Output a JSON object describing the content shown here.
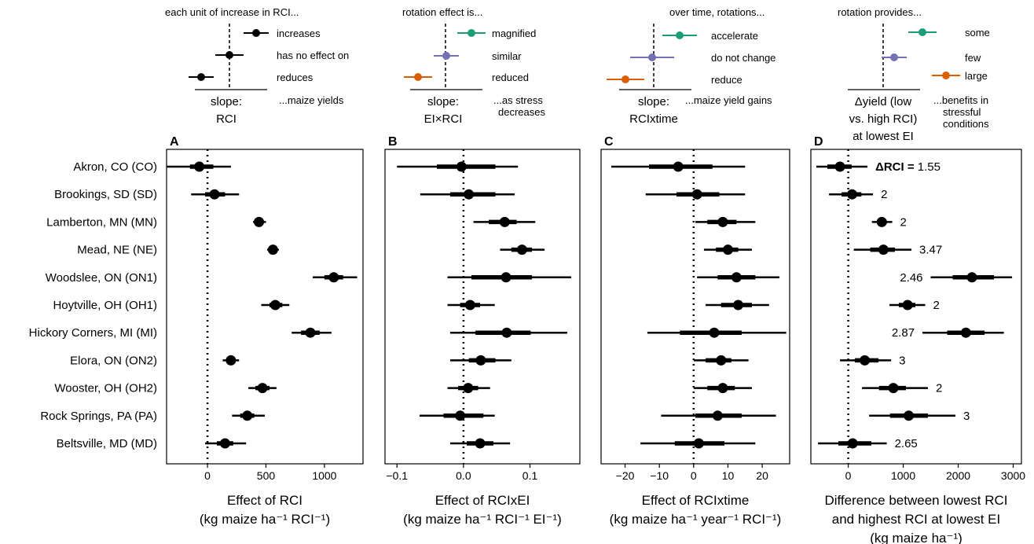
{
  "sites": [
    "Akron, CO (CO)",
    "Brookings, SD (SD)",
    "Lamberton, MN (MN)",
    "Mead, NE (NE)",
    "Woodslee, ON (ON1)",
    "Hoytville, OH (OH1)",
    "Hickory Corners, MI (MI)",
    "Elora, ON (ON2)",
    "Wooster, OH (OH2)",
    "Rock Springs, PA (PA)",
    "Beltsville, MD (MD)"
  ],
  "legends": [
    {
      "header": "each unit of increase in RCI...",
      "footer": "...maize yields",
      "axis_label": [
        "slope:",
        "RCI"
      ],
      "items": [
        {
          "label": "increases",
          "color": "#000000"
        },
        {
          "label": "has no effect on",
          "color": "#000000"
        },
        {
          "label": "reduces",
          "color": "#000000"
        }
      ]
    },
    {
      "header": "rotation effect is...",
      "footer": [
        "...as stress",
        "decreases"
      ],
      "axis_label": [
        "slope:",
        "EI×RCI"
      ],
      "items": [
        {
          "label": "magnified",
          "color": "#1b9e77"
        },
        {
          "label": "similar",
          "color": "#7570b3"
        },
        {
          "label": "reduced",
          "color": "#d95f02"
        }
      ]
    },
    {
      "header": "over time, rotations...",
      "footer": "...maize yield gains",
      "axis_label": [
        "slope:",
        "RCIxtime"
      ],
      "items": [
        {
          "label": "accelerate",
          "color": "#1b9e77"
        },
        {
          "label": "do not change",
          "color": "#7570b3"
        },
        {
          "label": "reduce",
          "color": "#d95f02"
        }
      ]
    },
    {
      "header": "rotation provides...",
      "footer": [
        "...benefits in",
        "stressful",
        "conditions"
      ],
      "axis_label": [
        "Δyield (low",
        "vs. high RCI)",
        "at lowest EI"
      ],
      "items": [
        {
          "label": "some",
          "color": "#1b9e77"
        },
        {
          "label": "few",
          "color": "#7570b3"
        },
        {
          "label": "large",
          "color": "#d95f02"
        }
      ]
    }
  ],
  "chart_data": [
    {
      "type": "forest",
      "panel_label": "A",
      "xlabel": [
        "Effect of RCI",
        "(kg maize ha⁻¹ RCI⁻¹)"
      ],
      "xlim": [
        -350,
        1330
      ],
      "xticks": [
        0,
        500,
        1000
      ],
      "xtick_labels": [
        "0",
        "500",
        "1000"
      ],
      "reference_line": 0,
      "points": [
        {
          "site": "CO",
          "estimate": -70,
          "inner": [
            -150,
            50
          ],
          "outer": [
            -350,
            200
          ]
        },
        {
          "site": "SD",
          "estimate": 60,
          "inner": [
            -20,
            150
          ],
          "outer": [
            -140,
            270
          ]
        },
        {
          "site": "MN",
          "estimate": 440,
          "inner": [
            410,
            470
          ],
          "outer": [
            390,
            500
          ]
        },
        {
          "site": "NE",
          "estimate": 560,
          "inner": [
            530,
            590
          ],
          "outer": [
            510,
            610
          ]
        },
        {
          "site": "ON1",
          "estimate": 1080,
          "inner": [
            1000,
            1160
          ],
          "outer": [
            900,
            1280
          ]
        },
        {
          "site": "OH1",
          "estimate": 580,
          "inner": [
            530,
            640
          ],
          "outer": [
            460,
            700
          ]
        },
        {
          "site": "MI",
          "estimate": 880,
          "inner": [
            800,
            960
          ],
          "outer": [
            720,
            1060
          ]
        },
        {
          "site": "ON2",
          "estimate": 200,
          "inner": [
            160,
            240
          ],
          "outer": [
            130,
            270
          ]
        },
        {
          "site": "OH2",
          "estimate": 470,
          "inner": [
            410,
            530
          ],
          "outer": [
            350,
            590
          ]
        },
        {
          "site": "PA",
          "estimate": 340,
          "inner": [
            280,
            400
          ],
          "outer": [
            210,
            490
          ]
        },
        {
          "site": "MD",
          "estimate": 150,
          "inner": [
            80,
            220
          ],
          "outer": [
            -20,
            330
          ]
        }
      ]
    },
    {
      "type": "forest",
      "panel_label": "B",
      "xlabel": [
        "Effect of RCIxEI",
        "(kg maize ha⁻¹ RCI⁻¹ EI⁻¹)"
      ],
      "xlim": [
        -0.118,
        0.175
      ],
      "xticks": [
        -0.1,
        0.0,
        0.1
      ],
      "xtick_labels": [
        "−0.1",
        "0.0",
        "0.1"
      ],
      "reference_line": 0,
      "points": [
        {
          "site": "CO",
          "estimate": -0.003,
          "inner": [
            -0.04,
            0.048
          ],
          "outer": [
            -0.1,
            0.082
          ]
        },
        {
          "site": "SD",
          "estimate": 0.008,
          "inner": [
            -0.02,
            0.048
          ],
          "outer": [
            -0.065,
            0.077
          ]
        },
        {
          "site": "MN",
          "estimate": 0.062,
          "inner": [
            0.038,
            0.08
          ],
          "outer": [
            0.015,
            0.108
          ]
        },
        {
          "site": "NE",
          "estimate": 0.088,
          "inner": [
            0.072,
            0.103
          ],
          "outer": [
            0.055,
            0.122
          ]
        },
        {
          "site": "ON1",
          "estimate": 0.064,
          "inner": [
            0.012,
            0.103
          ],
          "outer": [
            -0.024,
            0.162
          ]
        },
        {
          "site": "OH1",
          "estimate": 0.01,
          "inner": [
            -0.005,
            0.025
          ],
          "outer": [
            -0.024,
            0.047
          ]
        },
        {
          "site": "MI",
          "estimate": 0.065,
          "inner": [
            0.018,
            0.101
          ],
          "outer": [
            -0.02,
            0.156
          ]
        },
        {
          "site": "ON2",
          "estimate": 0.026,
          "inner": [
            0.008,
            0.048
          ],
          "outer": [
            -0.02,
            0.072
          ]
        },
        {
          "site": "OH2",
          "estimate": 0.007,
          "inner": [
            -0.008,
            0.022
          ],
          "outer": [
            -0.024,
            0.04
          ]
        },
        {
          "site": "PA",
          "estimate": -0.005,
          "inner": [
            -0.03,
            0.03
          ],
          "outer": [
            -0.066,
            0.047
          ]
        },
        {
          "site": "MD",
          "estimate": 0.025,
          "inner": [
            0.005,
            0.045
          ],
          "outer": [
            -0.02,
            0.07
          ]
        }
      ]
    },
    {
      "type": "forest",
      "panel_label": "C",
      "xlabel": [
        "Effect of RCIxtime",
        "(kg maize ha⁻¹ year⁻¹ RCI⁻¹)"
      ],
      "xlim": [
        -27,
        28
      ],
      "xticks": [
        -20,
        -10,
        0,
        10,
        20
      ],
      "xtick_labels": [
        "−20",
        "−10",
        "0",
        "10",
        "20"
      ],
      "reference_line": 0,
      "points": [
        {
          "site": "CO",
          "estimate": -4.5,
          "inner": [
            -13,
            5.5
          ],
          "outer": [
            -24,
            15
          ]
        },
        {
          "site": "SD",
          "estimate": 1,
          "inner": [
            -5,
            7.5
          ],
          "outer": [
            -14,
            15
          ]
        },
        {
          "site": "MN",
          "estimate": 8.5,
          "inner": [
            4,
            12.5
          ],
          "outer": [
            0.5,
            18
          ]
        },
        {
          "site": "NE",
          "estimate": 10,
          "inner": [
            6.5,
            13
          ],
          "outer": [
            3,
            17
          ]
        },
        {
          "site": "ON1",
          "estimate": 12.5,
          "inner": [
            7,
            18
          ],
          "outer": [
            1,
            25
          ]
        },
        {
          "site": "OH1",
          "estimate": 13,
          "inner": [
            8,
            17
          ],
          "outer": [
            3.5,
            22
          ]
        },
        {
          "site": "MI",
          "estimate": 6,
          "inner": [
            -4,
            14
          ],
          "outer": [
            -13.5,
            27
          ]
        },
        {
          "site": "ON2",
          "estimate": 8,
          "inner": [
            3.5,
            11
          ],
          "outer": [
            0,
            16
          ]
        },
        {
          "site": "OH2",
          "estimate": 8.5,
          "inner": [
            4,
            12
          ],
          "outer": [
            0,
            17
          ]
        },
        {
          "site": "PA",
          "estimate": 7,
          "inner": [
            0.5,
            14
          ],
          "outer": [
            -9.5,
            24
          ]
        },
        {
          "site": "MD",
          "estimate": 1.5,
          "inner": [
            -5.5,
            9
          ],
          "outer": [
            -15.5,
            18
          ]
        }
      ]
    },
    {
      "type": "forest",
      "panel_label": "D",
      "xlabel": [
        "Difference between lowest RCI",
        "and highest RCI at lowest EI",
        "(kg maize ha⁻¹)"
      ],
      "xlim": [
        -680,
        3150
      ],
      "xticks": [
        0,
        1000,
        2000,
        3000
      ],
      "xtick_labels": [
        "0",
        "1000",
        "2000",
        "3000"
      ],
      "reference_line": 0,
      "points": [
        {
          "site": "CO",
          "estimate": -150,
          "inner": [
            -380,
            60
          ],
          "outer": [
            -580,
            350
          ],
          "annotation": "1.55",
          "annotation_prefix": "ΔRCI = "
        },
        {
          "site": "SD",
          "estimate": 70,
          "inner": [
            -120,
            240
          ],
          "outer": [
            -350,
            450
          ],
          "annotation": "2"
        },
        {
          "site": "MN",
          "estimate": 610,
          "inner": [
            530,
            700
          ],
          "outer": [
            430,
            800
          ],
          "annotation": "2"
        },
        {
          "site": "NE",
          "estimate": 640,
          "inner": [
            400,
            850
          ],
          "outer": [
            100,
            1150
          ],
          "annotation": "3.47"
        },
        {
          "site": "ON1",
          "estimate": 2250,
          "inner": [
            1900,
            2650
          ],
          "outer": [
            1500,
            2980
          ],
          "annotation": "2.46"
        },
        {
          "site": "OH1",
          "estimate": 1080,
          "inner": [
            920,
            1220
          ],
          "outer": [
            750,
            1400
          ],
          "annotation": "2"
        },
        {
          "site": "MI",
          "estimate": 2140,
          "inner": [
            1800,
            2480
          ],
          "outer": [
            1350,
            2830
          ],
          "annotation": "2.87"
        },
        {
          "site": "ON2",
          "estimate": 300,
          "inner": [
            120,
            550
          ],
          "outer": [
            -150,
            780
          ],
          "annotation": "3"
        },
        {
          "site": "OH2",
          "estimate": 820,
          "inner": [
            560,
            1050
          ],
          "outer": [
            250,
            1450
          ],
          "annotation": "2"
        },
        {
          "site": "PA",
          "estimate": 1100,
          "inner": [
            760,
            1450
          ],
          "outer": [
            380,
            1950
          ],
          "annotation": "3"
        },
        {
          "site": "MD",
          "estimate": 80,
          "inner": [
            -180,
            420
          ],
          "outer": [
            -550,
            700
          ],
          "annotation": "2.65"
        }
      ]
    }
  ]
}
